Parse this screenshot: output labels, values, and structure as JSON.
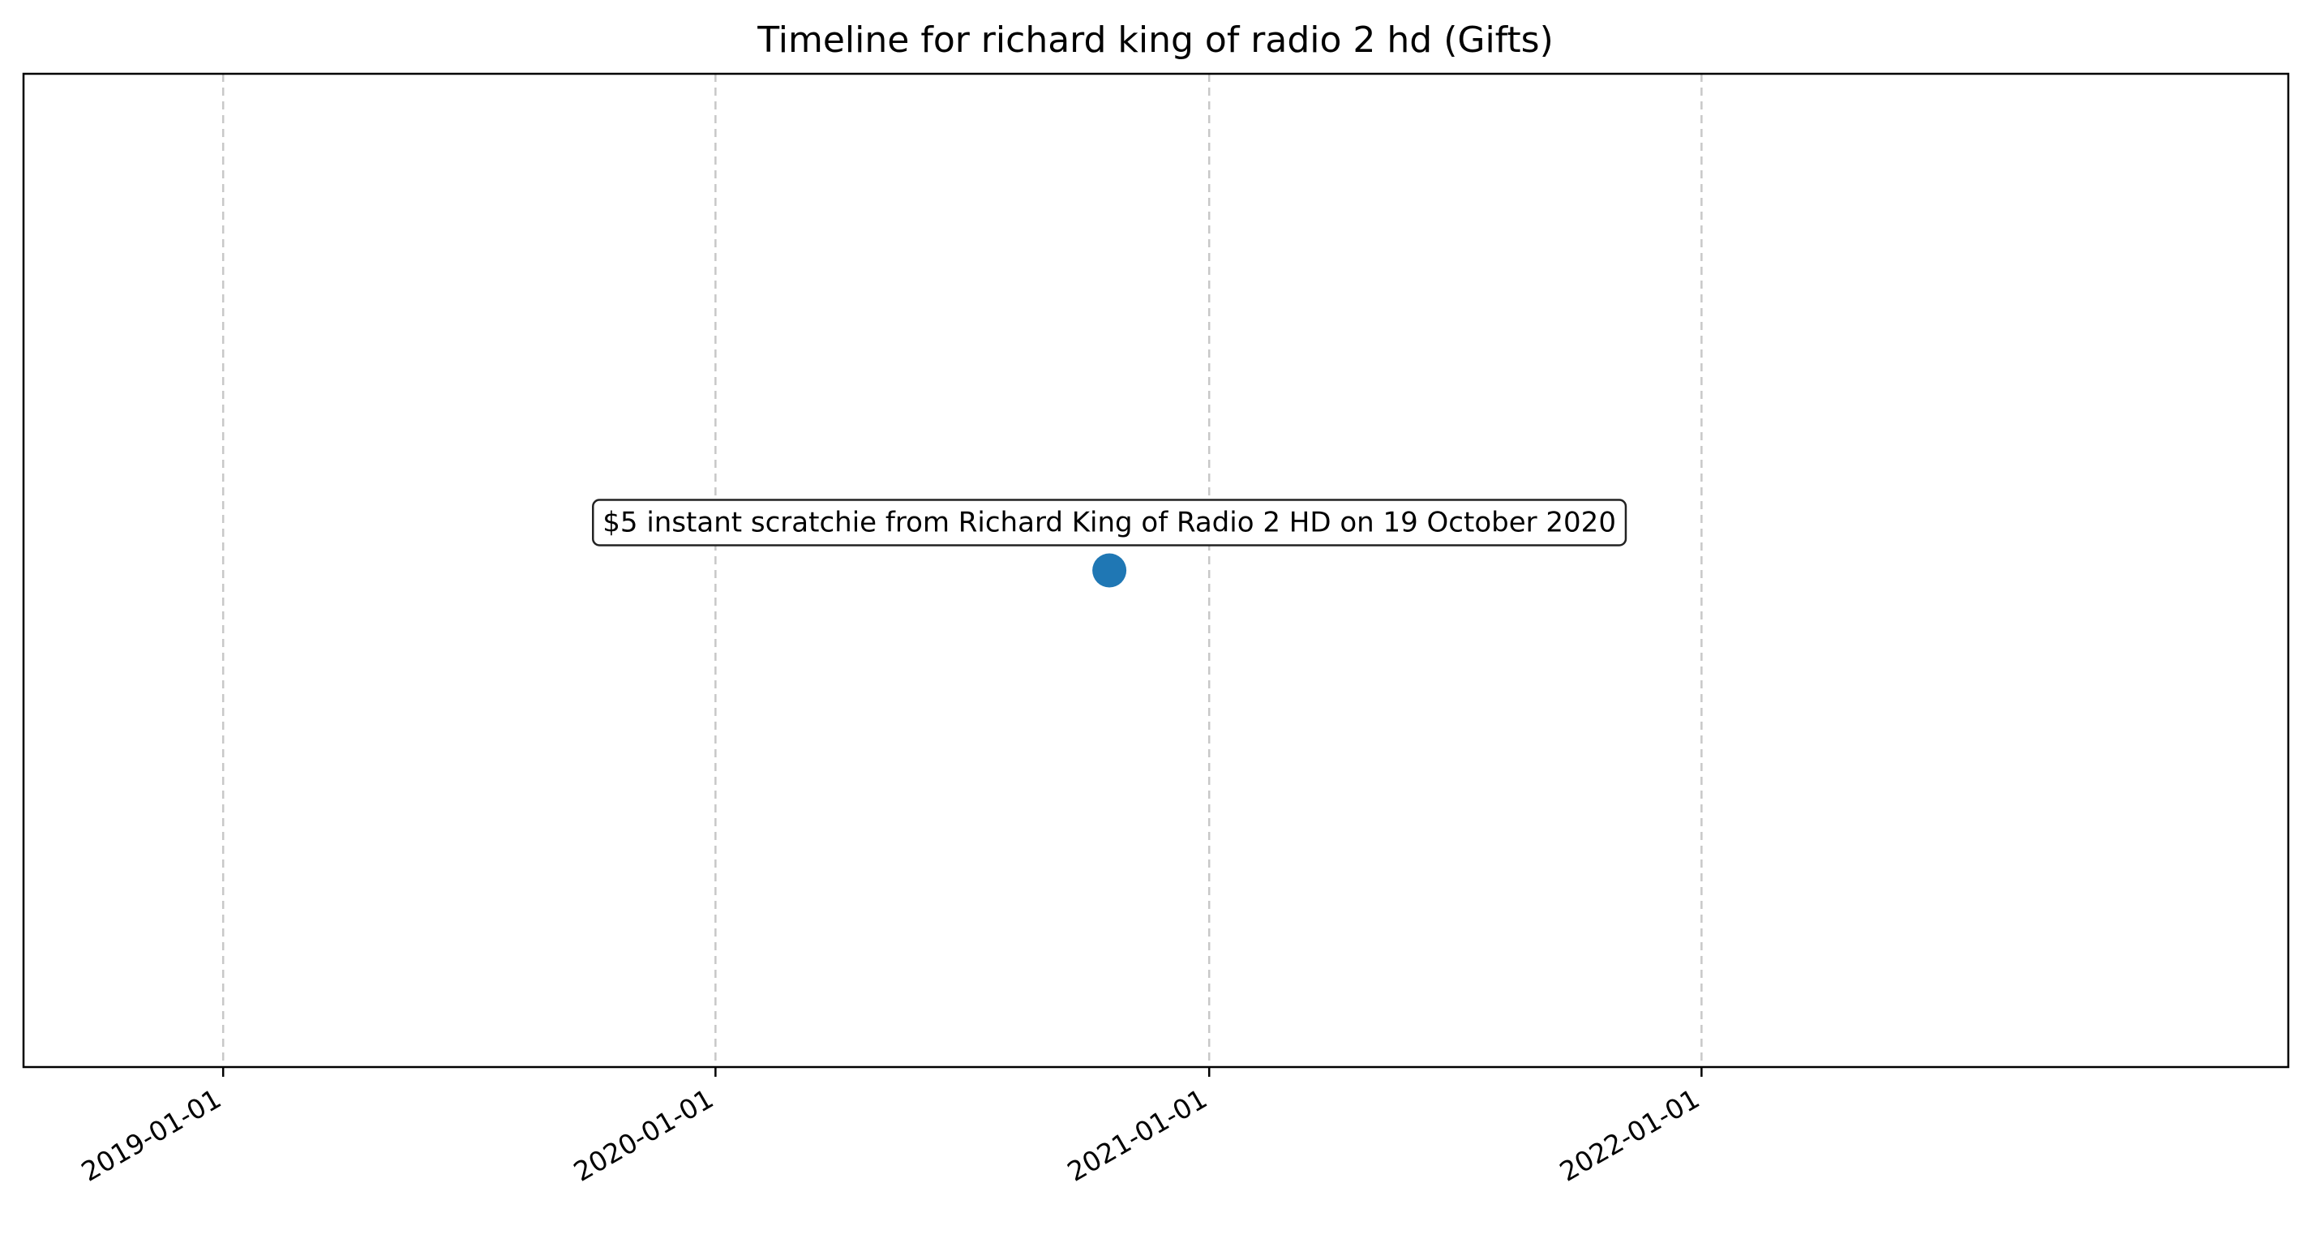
{
  "chart_data": {
    "type": "scatter",
    "title": "Timeline for richard king of radio 2 hd (Gifts)",
    "xlabel": "",
    "ylabel": "",
    "x_axis": "date",
    "xlim": [
      "2018-08-06",
      "2023-03-12"
    ],
    "ylim": [
      -1,
      1
    ],
    "y_ticks_shown": false,
    "x_ticks": [
      "2019-01-01",
      "2020-01-01",
      "2021-01-01",
      "2022-01-01"
    ],
    "x_tick_rotation_deg": 30,
    "grid": "x-dashed",
    "points": [
      {
        "x": "2020-10-19",
        "y": 0,
        "label": "$5 instant scratchie from Richard King of Radio 2 HD on 19 October 2020"
      }
    ],
    "colors": {
      "point": "#1f77b4",
      "grid": "#c8c8c8",
      "axes": "#000000",
      "annotation_border": "#222222"
    }
  }
}
